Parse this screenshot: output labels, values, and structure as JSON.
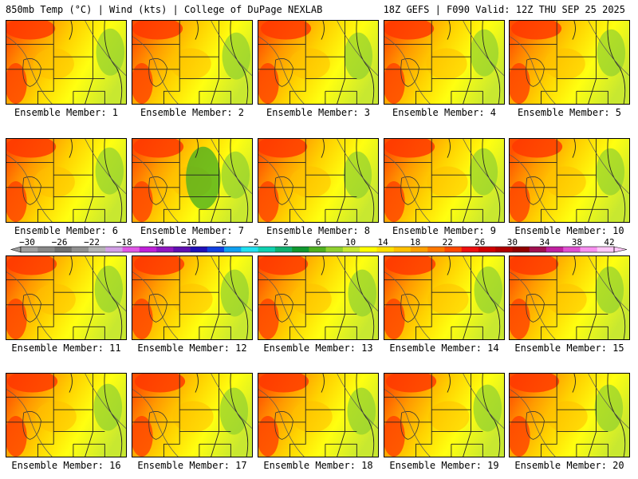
{
  "header": {
    "left_title": "850mb Temp (°C) | Wind (kts) | College of DuPage NEXLAB",
    "right_title": "18Z GEFS | F090 Valid: 12Z THU SEP 25 2025"
  },
  "colorbar": {
    "labels": [
      "−30",
      "−26",
      "−22",
      "−18",
      "−14",
      "−10",
      "−6",
      "−2",
      "2",
      "6",
      "10",
      "14",
      "18",
      "22",
      "26",
      "30",
      "34",
      "38",
      "42"
    ],
    "colors": [
      "#a0a0a0",
      "#888888",
      "#707070",
      "#909090",
      "#b4b4b4",
      "#d2a0e6",
      "#e058e6",
      "#c020d8",
      "#9018c0",
      "#6010b0",
      "#2010b8",
      "#1040e0",
      "#10a0f0",
      "#20e0f0",
      "#10d0b0",
      "#10b070",
      "#109830",
      "#50b020",
      "#90d030",
      "#c8e830",
      "#ffff00",
      "#ffe000",
      "#ffc000",
      "#ffa000",
      "#ff7800",
      "#ff4a00",
      "#ee1010",
      "#d00000",
      "#b00000",
      "#900000",
      "#a01050",
      "#c020a0",
      "#e050d0",
      "#f890f0",
      "#ffc8f8"
    ]
  },
  "panels": [
    {
      "label": "Ensemble Member: 1"
    },
    {
      "label": "Ensemble Member: 2"
    },
    {
      "label": "Ensemble Member: 3"
    },
    {
      "label": "Ensemble Member: 4"
    },
    {
      "label": "Ensemble Member: 5"
    },
    {
      "label": "Ensemble Member: 6"
    },
    {
      "label": "Ensemble Member: 7"
    },
    {
      "label": "Ensemble Member: 8"
    },
    {
      "label": "Ensemble Member: 9"
    },
    {
      "label": "Ensemble Member: 10"
    },
    {
      "label": "Ensemble Member: 11"
    },
    {
      "label": "Ensemble Member: 12"
    },
    {
      "label": "Ensemble Member: 13"
    },
    {
      "label": "Ensemble Member: 14"
    },
    {
      "label": "Ensemble Member: 15"
    },
    {
      "label": "Ensemble Member: 16"
    },
    {
      "label": "Ensemble Member: 17"
    },
    {
      "label": "Ensemble Member: 18"
    },
    {
      "label": "Ensemble Member: 19"
    },
    {
      "label": "Ensemble Member: 20"
    }
  ]
}
